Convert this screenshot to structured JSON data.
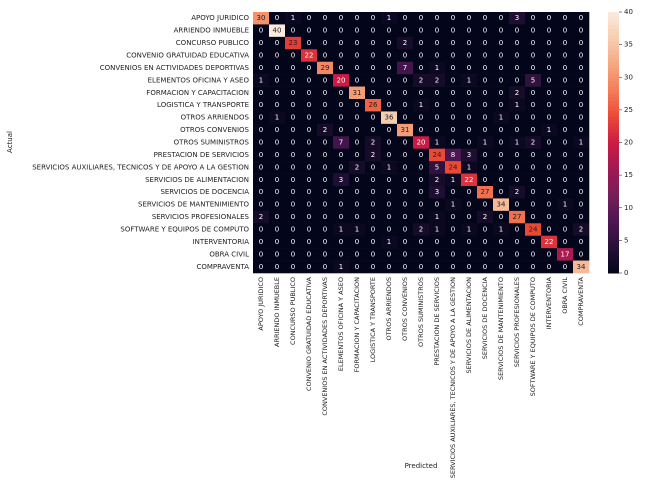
{
  "chart_data": {
    "type": "heatmap",
    "colormap": "rocket",
    "xlabel": "Predicted",
    "ylabel": "Actual",
    "categories": [
      "APOYO JURIDICO",
      "ARRIENDO INMUEBLE",
      "CONCURSO PUBLICO",
      "CONVENIO GRATUIDAD EDUCATIVA",
      "CONVENIOS EN ACTIVIDADES DEPORTIVAS",
      "ELEMENTOS OFICINA Y ASEO",
      "FORMACION Y CAPACITACION",
      "LOGISTICA Y TRANSPORTE",
      "OTROS ARRIENDOS",
      "OTROS CONVENIOS",
      "OTROS SUMINISTROS",
      "PRESTACION DE SERVICIOS",
      "SERVICIOS AUXILIARES, TECNICOS Y DE APOYO A LA GESTION",
      "SERVICIOS DE ALIMENTACION",
      "SERVICIOS DE DOCENCIA",
      "SERVICIOS DE MANTENIMIENTO",
      "SERVICIOS PROFESIONALES",
      "SOFTWARE Y EQUIPOS DE COMPUTO",
      "INTERVENTORIA",
      "OBRA CIVIL",
      "COMPRAVENTA"
    ],
    "values": [
      [
        30,
        0,
        1,
        0,
        0,
        0,
        0,
        0,
        1,
        0,
        0,
        0,
        0,
        0,
        0,
        0,
        3,
        0,
        0,
        0,
        0
      ],
      [
        0,
        40,
        0,
        0,
        0,
        0,
        0,
        0,
        0,
        0,
        0,
        0,
        0,
        0,
        0,
        0,
        0,
        0,
        0,
        0,
        0
      ],
      [
        0,
        0,
        23,
        0,
        0,
        0,
        0,
        0,
        0,
        2,
        0,
        0,
        0,
        0,
        0,
        0,
        0,
        0,
        0,
        0,
        0
      ],
      [
        0,
        0,
        0,
        22,
        0,
        0,
        0,
        0,
        0,
        0,
        0,
        0,
        0,
        0,
        0,
        0,
        0,
        0,
        0,
        0,
        0
      ],
      [
        0,
        0,
        0,
        0,
        29,
        0,
        0,
        0,
        0,
        7,
        0,
        1,
        0,
        0,
        0,
        0,
        0,
        0,
        0,
        0,
        0
      ],
      [
        1,
        0,
        0,
        0,
        0,
        20,
        0,
        0,
        0,
        0,
        2,
        2,
        0,
        1,
        0,
        0,
        0,
        5,
        0,
        0,
        0
      ],
      [
        0,
        0,
        0,
        0,
        0,
        0,
        31,
        0,
        0,
        0,
        0,
        0,
        0,
        0,
        0,
        0,
        2,
        0,
        0,
        0,
        0
      ],
      [
        0,
        0,
        0,
        0,
        0,
        0,
        0,
        26,
        0,
        0,
        1,
        0,
        0,
        0,
        0,
        0,
        1,
        0,
        0,
        0,
        0
      ],
      [
        0,
        1,
        0,
        0,
        0,
        0,
        0,
        0,
        36,
        0,
        0,
        0,
        0,
        0,
        0,
        1,
        0,
        0,
        0,
        0,
        0
      ],
      [
        0,
        0,
        0,
        0,
        2,
        0,
        0,
        0,
        0,
        31,
        0,
        0,
        0,
        0,
        0,
        0,
        0,
        0,
        1,
        0,
        0
      ],
      [
        0,
        0,
        0,
        0,
        0,
        7,
        0,
        2,
        0,
        0,
        20,
        1,
        0,
        0,
        1,
        0,
        1,
        2,
        0,
        0,
        1
      ],
      [
        0,
        0,
        0,
        0,
        0,
        0,
        0,
        2,
        0,
        0,
        0,
        24,
        8,
        3,
        0,
        0,
        0,
        0,
        0,
        0,
        0
      ],
      [
        0,
        0,
        0,
        0,
        0,
        0,
        2,
        0,
        1,
        0,
        0,
        5,
        24,
        1,
        0,
        0,
        0,
        0,
        0,
        0,
        0
      ],
      [
        0,
        0,
        0,
        0,
        0,
        3,
        0,
        0,
        0,
        0,
        0,
        2,
        1,
        22,
        0,
        0,
        0,
        0,
        0,
        0,
        0
      ],
      [
        0,
        0,
        0,
        0,
        0,
        0,
        0,
        0,
        0,
        0,
        0,
        3,
        0,
        0,
        27,
        0,
        2,
        0,
        0,
        0,
        0
      ],
      [
        0,
        0,
        0,
        0,
        0,
        0,
        0,
        0,
        0,
        0,
        0,
        0,
        1,
        0,
        0,
        34,
        0,
        0,
        0,
        1,
        0
      ],
      [
        2,
        0,
        0,
        0,
        0,
        0,
        0,
        0,
        0,
        0,
        0,
        1,
        0,
        0,
        2,
        0,
        27,
        0,
        0,
        0,
        0
      ],
      [
        0,
        0,
        0,
        0,
        0,
        1,
        1,
        0,
        0,
        0,
        2,
        1,
        0,
        1,
        0,
        1,
        0,
        24,
        0,
        0,
        2
      ],
      [
        0,
        0,
        0,
        0,
        0,
        0,
        0,
        0,
        1,
        0,
        0,
        0,
        0,
        0,
        0,
        0,
        0,
        0,
        22,
        0,
        0
      ],
      [
        0,
        0,
        0,
        0,
        0,
        0,
        0,
        0,
        0,
        0,
        0,
        0,
        0,
        0,
        0,
        0,
        0,
        0,
        0,
        17,
        0
      ],
      [
        0,
        0,
        0,
        0,
        0,
        1,
        0,
        0,
        0,
        0,
        0,
        0,
        0,
        0,
        0,
        0,
        0,
        0,
        0,
        0,
        34
      ]
    ],
    "clim": [
      0,
      40
    ],
    "cticks": [
      0,
      5,
      10,
      15,
      20,
      25,
      30,
      35,
      40
    ]
  }
}
